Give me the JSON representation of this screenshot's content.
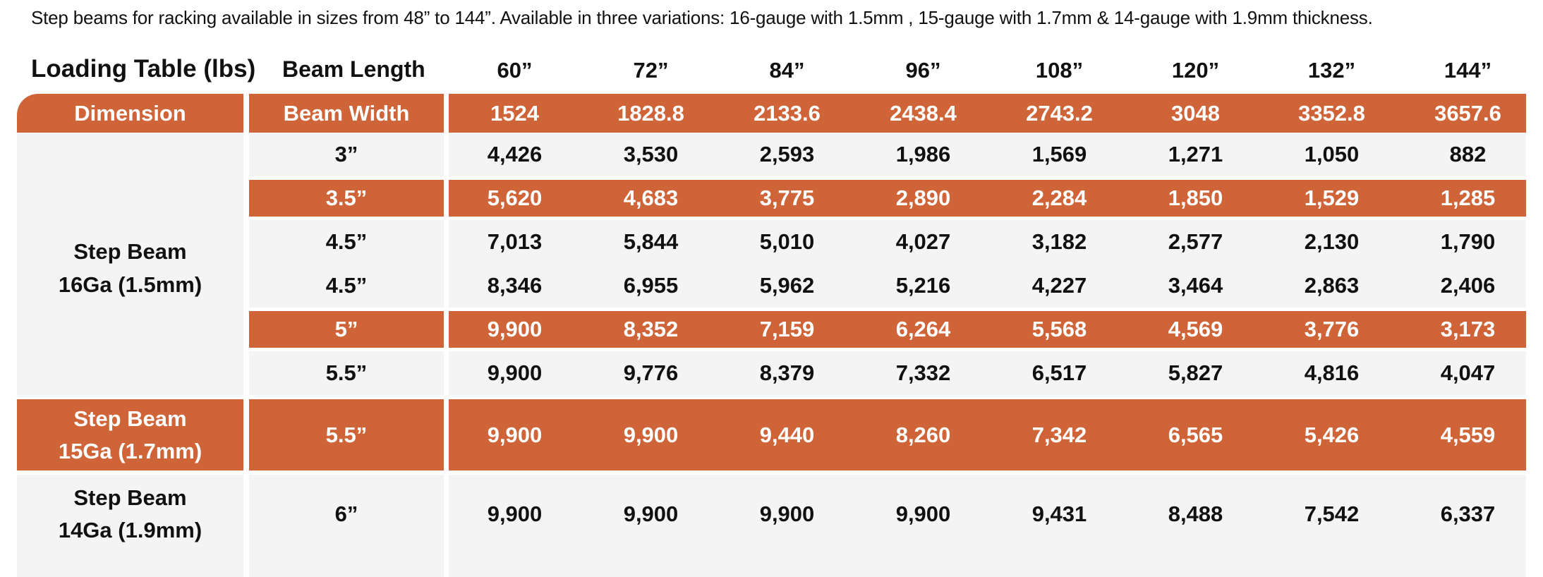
{
  "intro_text": "Step beams for racking available in sizes from 48” to 144”.  Available in three variations: 16-gauge with 1.5mm , 15-gauge with 1.7mm & 14-gauge with 1.9mm thickness.",
  "table": {
    "title": "Loading Table (lbs)",
    "beam_length_label": "Beam Length",
    "lengths": [
      "60”",
      "72”",
      "84”",
      "96”",
      "108”",
      "120”",
      "132”",
      "144”"
    ],
    "dimension_label": "Dimension",
    "beam_width_label": "Beam Width",
    "widths_mm": [
      "1524",
      "1828.8",
      "2133.6",
      "2438.4",
      "2743.2",
      "3048",
      "3352.8",
      "3657.6"
    ],
    "groups": [
      {
        "label_line1": "Step Beam",
        "label_line2": "16Ga (1.5mm)",
        "rows": [
          {
            "size": "3”",
            "values": [
              "4,426",
              "3,530",
              "2,593",
              "1,986",
              "1,569",
              "1,271",
              "1,050",
              "882"
            ]
          },
          {
            "size": "3.5”",
            "values": [
              "5,620",
              "4,683",
              "3,775",
              "2,890",
              "2,284",
              "1,850",
              "1,529",
              "1,285"
            ]
          },
          {
            "size": "4.5”",
            "values": [
              "7,013",
              "5,844",
              "5,010",
              "4,027",
              "3,182",
              "2,577",
              "2,130",
              "1,790"
            ]
          },
          {
            "size": "4.5”",
            "values": [
              "8,346",
              "6,955",
              "5,962",
              "5,216",
              "4,227",
              "3,464",
              "2,863",
              "2,406"
            ]
          },
          {
            "size": "5”",
            "values": [
              "9,900",
              "8,352",
              "7,159",
              "6,264",
              "5,568",
              "4,569",
              "3,776",
              "3,173"
            ]
          },
          {
            "size": "5.5”",
            "values": [
              "9,900",
              "9,776",
              "8,379",
              "7,332",
              "6,517",
              "5,827",
              "4,816",
              "4,047"
            ]
          }
        ]
      },
      {
        "label_line1": "Step Beam",
        "label_line2": "15Ga (1.7mm)",
        "rows": [
          {
            "size": "5.5”",
            "values": [
              "9,900",
              "9,900",
              "9,440",
              "8,260",
              "7,342",
              "6,565",
              "5,426",
              "4,559"
            ]
          }
        ]
      },
      {
        "label_line1": "Step Beam",
        "label_line2": "14Ga (1.9mm)",
        "rows": [
          {
            "size": "6”",
            "values": [
              "9,900",
              "9,900",
              "9,900",
              "9,900",
              "9,431",
              "8,488",
              "7,542",
              "6,337"
            ]
          }
        ]
      }
    ],
    "colors": {
      "accent": "#cf6438",
      "light_bg": "#f4f4f4",
      "text": "#111111"
    }
  }
}
